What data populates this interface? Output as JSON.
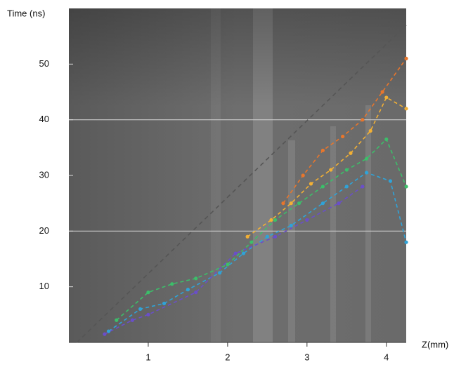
{
  "chart_data": {
    "type": "line",
    "x_label": "Z(mm)",
    "y_label": "Time (ns)",
    "xlim": [
      0,
      4.25
    ],
    "ylim": [
      0,
      60
    ],
    "xticks": [
      1,
      2,
      3,
      4
    ],
    "yticks": [
      10,
      20,
      30,
      40,
      50
    ],
    "hlines": [
      20,
      40
    ],
    "series": [
      {
        "color": "#555555",
        "dash": "6,5",
        "markers": false,
        "x": [
          0.1,
          4.25
        ],
        "values": [
          0,
          57
        ]
      },
      {
        "color": "#e8762c",
        "x": [
          2.7,
          2.95,
          3.2,
          3.45,
          3.7,
          3.95,
          4.25
        ],
        "values": [
          25,
          30,
          34.5,
          37,
          40,
          45,
          51
        ]
      },
      {
        "color": "#f2b035",
        "x": [
          2.25,
          2.55,
          2.8,
          3.05,
          3.3,
          3.55,
          3.8,
          4.0,
          4.25
        ],
        "values": [
          19,
          22,
          25,
          28.5,
          31,
          34,
          38,
          44,
          42
        ]
      },
      {
        "color": "#3cbf6a",
        "x": [
          0.6,
          1.0,
          1.3,
          1.6,
          2.0,
          2.3,
          2.6,
          2.9,
          3.2,
          3.5,
          3.75,
          4.0,
          4.25
        ],
        "values": [
          4,
          9,
          10.5,
          11.5,
          14,
          18,
          22,
          25,
          28,
          31,
          33,
          36.5,
          28
        ]
      },
      {
        "color": "#2fa3d8",
        "x": [
          0.5,
          0.9,
          1.2,
          1.5,
          1.9,
          2.2,
          2.5,
          2.8,
          3.2,
          3.5,
          3.75,
          4.05,
          4.25
        ],
        "values": [
          2,
          6,
          7,
          9.5,
          12.5,
          16,
          19,
          21,
          25,
          28,
          30.5,
          29,
          18
        ]
      },
      {
        "color": "#6a4fc9",
        "x": [
          0.45,
          0.8,
          1.0,
          1.6,
          2.1,
          2.6,
          3.0,
          3.4,
          3.7
        ],
        "values": [
          1.5,
          4,
          5,
          9,
          16,
          19,
          22,
          25,
          28
        ]
      }
    ]
  }
}
